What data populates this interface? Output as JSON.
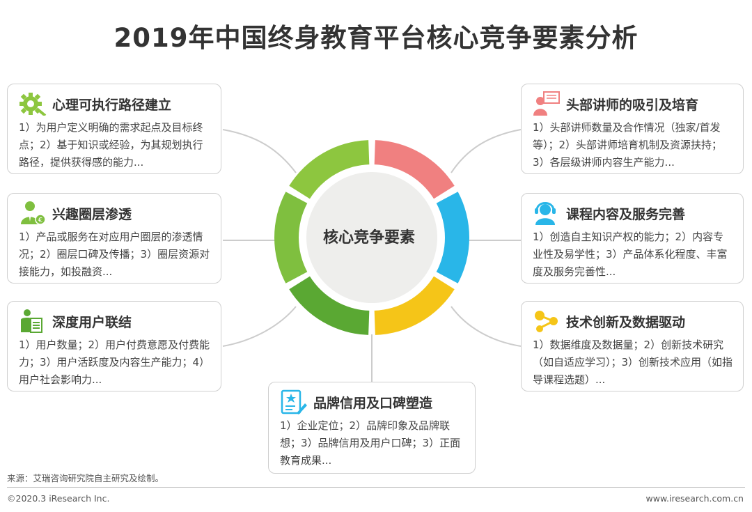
{
  "title": "2019年中国终身教育平台核心竞争要素分析",
  "center_label": "核心竞争要素",
  "cards": [
    {
      "title": "心理可执行路径建立",
      "body": "1）为用户定义明确的需求起点及目标终点；2）基于知识或经验，为其规划执行路径，提供获得感的能力...",
      "icon": "gear-wrench-icon",
      "color": "#8dc63f"
    },
    {
      "title": "兴趣圈层渗透",
      "body": "1）产品或服务在对应用户圈层的渗透情况；2）圈层口碑及传播；3）圈层资源对接能力，如投融资...",
      "icon": "businessman-icon",
      "color": "#7fbf3f"
    },
    {
      "title": "深度用户联结",
      "body": "1）用户数量；2）用户付费意愿及付费能力；3）用户活跃度及内容生产能力；4）用户社会影响力...",
      "icon": "user-document-icon",
      "color": "#5aa833"
    },
    {
      "title": "头部讲师的吸引及培育",
      "body": "1）头部讲师数量及合作情况（独家/首发等）；2）头部讲师培育机制及资源扶持；3）各层级讲师内容生产能力...",
      "icon": "lecturer-icon",
      "color": "#f08080"
    },
    {
      "title": "课程内容及服务完善",
      "body": "1）创造自主知识产权的能力；2）内容专业性及易学性；3）产品体系化程度、丰富度及服务完善性...",
      "icon": "headset-user-icon",
      "color": "#29b6e8"
    },
    {
      "title": "技术创新及数据驱动",
      "body": "1）数据维度及数据量；2）创新技术研究（如自适应学习）；3）创新技术应用（如指导课程选题）...",
      "icon": "network-nodes-icon",
      "color": "#f5c518"
    },
    {
      "title": "品牌信用及口碑塑造",
      "body": "1）企业定位；2）品牌印象及品牌联想；3）品牌信用及用户口碑；3）正面教育成果...",
      "icon": "certificate-icon",
      "color": "#29b6e8"
    }
  ],
  "source": "来源：艾瑞咨询研究院自主研究及绘制。",
  "footer_left": "©2020.3 iResearch Inc.",
  "footer_right": "www.iresearch.com.cn"
}
